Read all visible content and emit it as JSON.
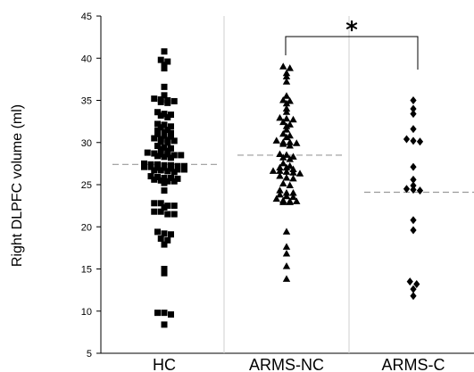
{
  "chart_data": {
    "type": "scatter",
    "title": "",
    "xlabel": "",
    "ylabel": "Right DLPFC volume (ml)",
    "categories": [
      "HC",
      "ARMS-NC",
      "ARMS-C"
    ],
    "ylim": [
      5,
      45
    ],
    "yticks": [
      5,
      10,
      15,
      20,
      25,
      30,
      35,
      40,
      45
    ],
    "grid": false,
    "significance": {
      "label": "*",
      "between": [
        "ARMS-NC",
        "ARMS-C"
      ]
    },
    "series": [
      {
        "category": "HC",
        "marker": "square",
        "mean": 27.4,
        "values": [
          40.8,
          39.8,
          39.6,
          39.2,
          38.8,
          36.6,
          35.6,
          35.2,
          35.1,
          35,
          34.9,
          34.8,
          34.7,
          33.6,
          33.4,
          33.3,
          33.2,
          33,
          32.2,
          32.1,
          31.9,
          31.8,
          31.5,
          31.4,
          31.2,
          31.1,
          31,
          30.8,
          30.7,
          30.5,
          30.4,
          30.3,
          30.2,
          30.1,
          30,
          29.6,
          29.4,
          29.3,
          29.2,
          29,
          28.8,
          28.7,
          28.6,
          28.6,
          28.5,
          28.5,
          28.4,
          28.3,
          28.2,
          27.5,
          27.4,
          27.4,
          27.3,
          27.3,
          27.2,
          27.2,
          27.1,
          27.1,
          27,
          27,
          26.9,
          26.8,
          26.8,
          26.7,
          26.7,
          26.6,
          26.5,
          26,
          25.9,
          25.8,
          25.8,
          25.7,
          25.6,
          25.5,
          25.4,
          25.4,
          25.2,
          24.3,
          22.8,
          22.8,
          22.5,
          22.5,
          22.3,
          21.8,
          21.8,
          21.5,
          21.5,
          19.4,
          19.2,
          19.1,
          18.6,
          18.4,
          17.9,
          15,
          14.5,
          9.8,
          9.8,
          9.6,
          8.4
        ]
      },
      {
        "category": "ARMS-NC",
        "marker": "triangle",
        "mean": 28.5,
        "values": [
          39,
          38.8,
          38.2,
          37.8,
          37.2,
          35.5,
          35,
          34.9,
          34.6,
          34,
          33.6,
          32.9,
          32.8,
          32.7,
          32.4,
          32.1,
          31.9,
          31.5,
          31,
          30.8,
          30.6,
          30.2,
          30,
          30,
          29.9,
          29.8,
          29.6,
          28.6,
          28.5,
          28.3,
          28.2,
          28,
          27.5,
          27.2,
          27,
          27,
          26.8,
          26.6,
          26.6,
          26.5,
          26.4,
          26.3,
          26,
          25.8,
          25.7,
          25.1,
          24.9,
          24.3,
          24,
          24,
          23.8,
          23.6,
          23.5,
          23.3,
          23.1,
          23,
          23,
          22.9,
          22.9,
          19.4,
          17.6,
          16.8,
          15.3,
          13.8
        ]
      },
      {
        "category": "ARMS-C",
        "marker": "diamond",
        "mean": 24.1,
        "values": [
          35,
          34,
          33.4,
          31.6,
          30.4,
          30.2,
          30.1,
          27.1,
          25.6,
          24.9,
          24.5,
          24.4,
          24.3,
          20.8,
          19.6,
          13.5,
          13.2,
          12.6,
          11.8
        ]
      }
    ]
  }
}
